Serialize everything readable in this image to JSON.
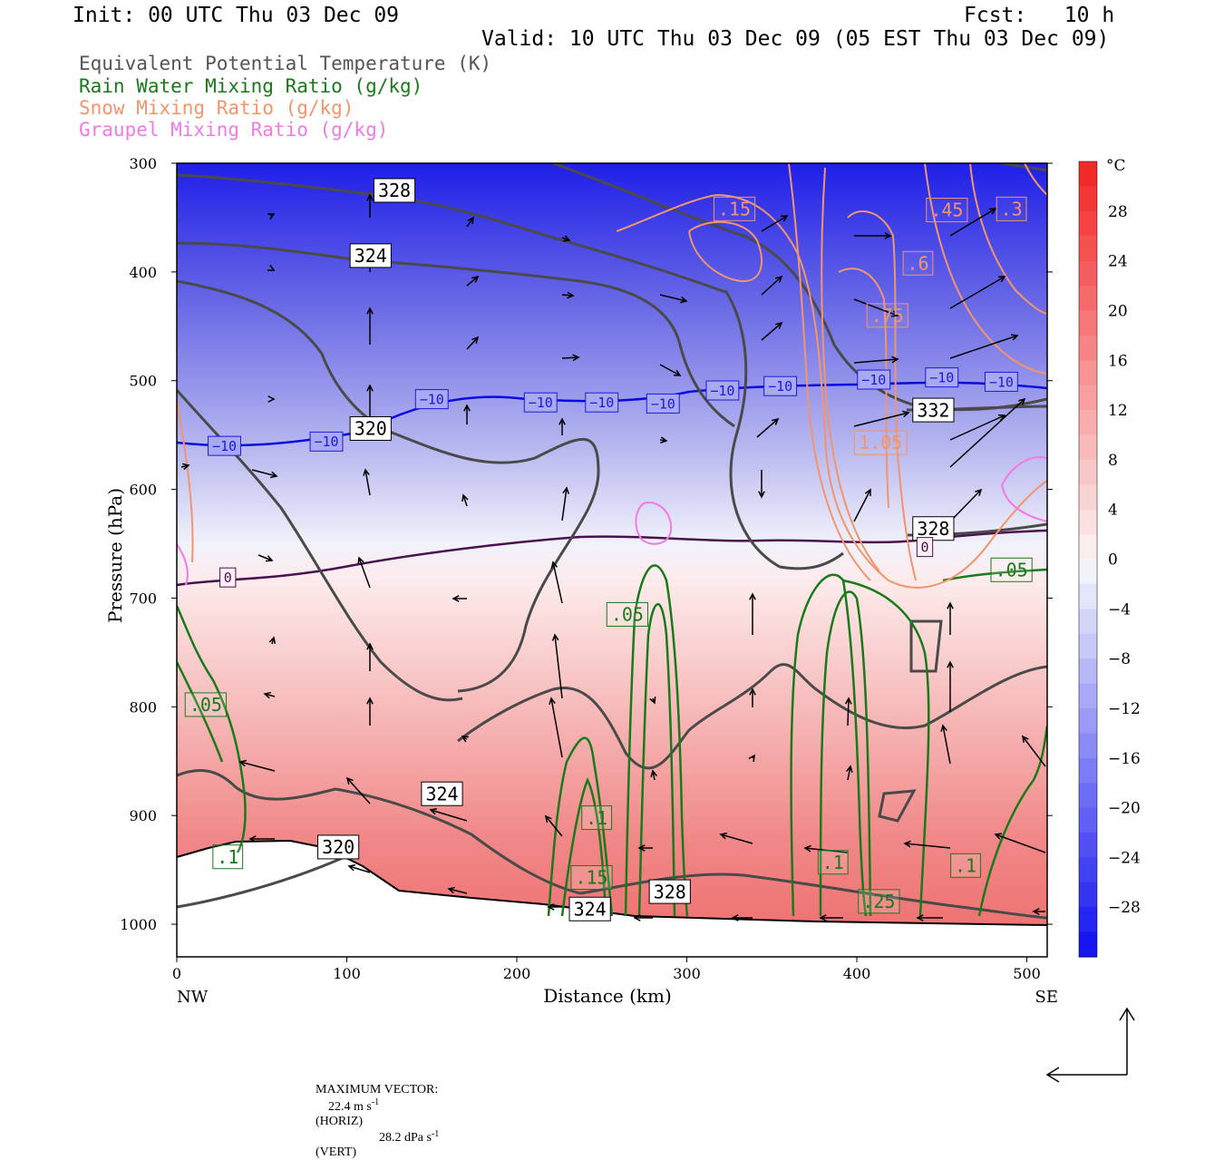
{
  "header": {
    "init": "Init: 00 UTC Thu 03 Dec 09",
    "fcst": "Fcst:   10 h",
    "valid": "Valid: 10 UTC Thu 03 Dec 09 (05 EST Thu 03 Dec 09)"
  },
  "legend": [
    {
      "label": "Equivalent Potential Temperature (K)",
      "color": "#555555"
    },
    {
      "label": "Rain Water Mixing Ratio (g/kg)",
      "color": "#1a7a1a"
    },
    {
      "label": "Snow Mixing Ratio (g/kg)",
      "color": "#f2946c"
    },
    {
      "label": "Graupel Mixing Ratio (g/kg)",
      "color": "#f07ae6"
    }
  ],
  "footer": {
    "max_vector_label": "MAXIMUM VECTOR:",
    "horiz": "22.4 m s",
    "horiz_unit": "(HORIZ)",
    "vert": "28.2 dPa s",
    "vert_unit": "(VERT)",
    "exp": "-1"
  },
  "chart_data": {
    "type": "cross-section",
    "xlabel": "Distance (km)",
    "ylabel": "Pressure (hPa)",
    "xlim": [
      0,
      512
    ],
    "ylim": [
      1030,
      300
    ],
    "x_ticks": [
      0,
      100,
      200,
      300,
      400,
      500
    ],
    "y_ticks": [
      300,
      400,
      500,
      600,
      700,
      800,
      900,
      1000
    ],
    "x_endpoints": {
      "left": "NW",
      "right": "SE"
    },
    "colorbar": {
      "unit": "°C",
      "ticks": [
        28,
        24,
        20,
        16,
        12,
        8,
        4,
        0,
        -4,
        -8,
        -12,
        -16,
        -20,
        -24,
        -28
      ],
      "range": [
        -32,
        32
      ]
    },
    "isotherm_labels": [
      {
        "x": 28,
        "p": 560,
        "text": "−10"
      },
      {
        "x": 88,
        "p": 556,
        "text": "−10"
      },
      {
        "x": 150,
        "p": 517,
        "text": "−10"
      },
      {
        "x": 214,
        "p": 520,
        "text": "−10"
      },
      {
        "x": 250,
        "p": 520,
        "text": "−10"
      },
      {
        "x": 286,
        "p": 521,
        "text": "−10"
      },
      {
        "x": 321,
        "p": 509,
        "text": "−10"
      },
      {
        "x": 355,
        "p": 505,
        "text": "−10"
      },
      {
        "x": 410,
        "p": 499,
        "text": "−10"
      },
      {
        "x": 450,
        "p": 497,
        "text": "−10"
      },
      {
        "x": 485,
        "p": 501,
        "text": "−10"
      },
      {
        "x": 30,
        "p": 681,
        "text": "0"
      },
      {
        "x": 440,
        "p": 653,
        "text": "0"
      }
    ],
    "theta_e_labels": [
      {
        "x": 128,
        "p": 325,
        "text": "328"
      },
      {
        "x": 114,
        "p": 385,
        "text": "324"
      },
      {
        "x": 114,
        "p": 544,
        "text": "320"
      },
      {
        "x": 156,
        "p": 880,
        "text": "324"
      },
      {
        "x": 95,
        "p": 929,
        "text": "320"
      },
      {
        "x": 290,
        "p": 970,
        "text": "328"
      },
      {
        "x": 243,
        "p": 986,
        "text": "324"
      },
      {
        "x": 445,
        "p": 527,
        "text": "332"
      },
      {
        "x": 445,
        "p": 636,
        "text": "328"
      }
    ],
    "rain_labels": [
      {
        "x": 17,
        "p": 798,
        "text": ".05"
      },
      {
        "x": 265,
        "p": 715,
        "text": ".05"
      },
      {
        "x": 491,
        "p": 674,
        "text": ".05"
      },
      {
        "x": 30,
        "p": 938,
        "text": ".1"
      },
      {
        "x": 247,
        "p": 902,
        "text": ".1"
      },
      {
        "x": 386,
        "p": 943,
        "text": ".1"
      },
      {
        "x": 464,
        "p": 946,
        "text": ".1"
      },
      {
        "x": 244,
        "p": 957,
        "text": ".15"
      },
      {
        "x": 413,
        "p": 979,
        "text": ".25"
      }
    ],
    "snow_labels": [
      {
        "x": 328,
        "p": 342,
        "text": ".15"
      },
      {
        "x": 453,
        "p": 343,
        "text": ".45"
      },
      {
        "x": 491,
        "p": 342,
        "text": ".3"
      },
      {
        "x": 436,
        "p": 392,
        "text": ".6"
      },
      {
        "x": 418,
        "p": 440,
        "text": ".75"
      },
      {
        "x": 414,
        "p": 557,
        "text": "1.05"
      }
    ]
  }
}
